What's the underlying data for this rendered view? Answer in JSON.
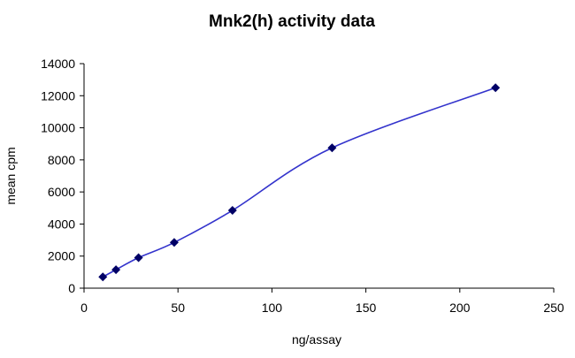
{
  "chart_data": {
    "type": "line",
    "title": "Mnk2(h) activity data",
    "xlabel": "ng/assay",
    "ylabel": "mean cpm",
    "xlim": [
      0,
      250
    ],
    "ylim": [
      0,
      14000
    ],
    "xticks": [
      0,
      50,
      100,
      150,
      200,
      250
    ],
    "yticks": [
      0,
      2000,
      4000,
      6000,
      8000,
      10000,
      12000,
      14000
    ],
    "grid": false,
    "legend": "none",
    "series": [
      {
        "x": [
          10,
          17,
          29,
          48,
          79,
          132,
          219
        ],
        "y": [
          700,
          1150,
          1900,
          2850,
          4850,
          8750,
          12500
        ],
        "line_color": "#3333cc",
        "marker": "diamond",
        "marker_color": "#000066",
        "smooth": true
      }
    ]
  }
}
